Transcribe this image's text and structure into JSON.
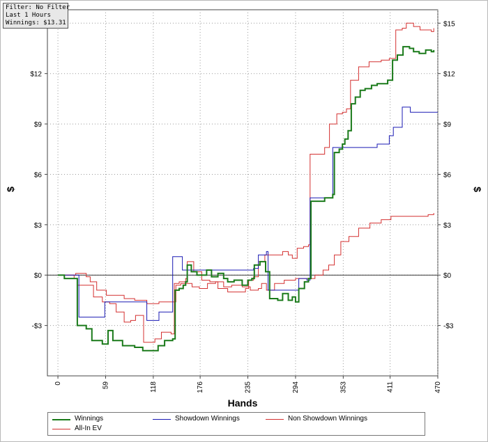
{
  "info": {
    "filter": "Filter: No Filter",
    "period": "Last  1 Hours",
    "winnings": "Winnings: $13.31"
  },
  "chart_data": {
    "type": "line",
    "xlabel": "Hands",
    "ylabel": "$",
    "ylabel_right": "$",
    "xlim": [
      -13,
      470
    ],
    "ylim": [
      -6,
      15.8
    ],
    "x_ticks": [
      0,
      59,
      118,
      176,
      235,
      294,
      353,
      411,
      470
    ],
    "y_ticks": [
      -3,
      0,
      3,
      6,
      9,
      12,
      15
    ],
    "y_tick_labels": [
      "-$3",
      "$0",
      "$3",
      "$6",
      "$9",
      "$12",
      "$15"
    ],
    "grid": true,
    "legend_position": "bottom",
    "series": [
      {
        "name": "Winnings",
        "color": "#1a7a1a",
        "points": [
          [
            0,
            0
          ],
          [
            8,
            -0.2
          ],
          [
            22,
            -0.2
          ],
          [
            24,
            -3
          ],
          [
            35,
            -3.2
          ],
          [
            42,
            -3.9
          ],
          [
            55,
            -4.1
          ],
          [
            62,
            -3.3
          ],
          [
            68,
            -3.9
          ],
          [
            80,
            -4.2
          ],
          [
            95,
            -4.3
          ],
          [
            105,
            -4.5
          ],
          [
            120,
            -4.5
          ],
          [
            124,
            -4.2
          ],
          [
            132,
            -3.9
          ],
          [
            142,
            -3.8
          ],
          [
            145,
            -0.9
          ],
          [
            150,
            -0.8
          ],
          [
            155,
            -0.6
          ],
          [
            158,
            -0.4
          ],
          [
            160,
            0.6
          ],
          [
            165,
            0.2
          ],
          [
            172,
            0
          ],
          [
            178,
            0
          ],
          [
            184,
            0.3
          ],
          [
            190,
            -0.1
          ],
          [
            198,
            0.1
          ],
          [
            205,
            -0.2
          ],
          [
            210,
            -0.4
          ],
          [
            218,
            -0.3
          ],
          [
            228,
            -0.6
          ],
          [
            235,
            -0.3
          ],
          [
            240,
            -0.2
          ],
          [
            243,
            0.6
          ],
          [
            250,
            0.8
          ],
          [
            257,
            0.2
          ],
          [
            262,
            -1.4
          ],
          [
            272,
            -1.5
          ],
          [
            278,
            -1.1
          ],
          [
            285,
            -1.5
          ],
          [
            290,
            -1.3
          ],
          [
            294,
            -1.6
          ],
          [
            298,
            -0.8
          ],
          [
            305,
            -0.4
          ],
          [
            310,
            -0.2
          ],
          [
            313,
            4.4
          ],
          [
            330,
            4.6
          ],
          [
            340,
            4.8
          ],
          [
            342,
            7.3
          ],
          [
            348,
            7.5
          ],
          [
            352,
            7.8
          ],
          [
            355,
            8.1
          ],
          [
            359,
            8.6
          ],
          [
            363,
            10.2
          ],
          [
            368,
            10.6
          ],
          [
            374,
            11
          ],
          [
            380,
            11.1
          ],
          [
            388,
            11.3
          ],
          [
            395,
            11.4
          ],
          [
            408,
            11.6
          ],
          [
            414,
            12.8
          ],
          [
            420,
            13.1
          ],
          [
            427,
            13.6
          ],
          [
            435,
            13.5
          ],
          [
            440,
            13.3
          ],
          [
            447,
            13.2
          ],
          [
            455,
            13.4
          ],
          [
            462,
            13.3
          ],
          [
            465,
            13.4
          ]
        ]
      },
      {
        "name": "Showdown Winnings",
        "color": "#1a1ab4",
        "points": [
          [
            0,
            0
          ],
          [
            24,
            0
          ],
          [
            26,
            -2.5
          ],
          [
            55,
            -2.5
          ],
          [
            58,
            -1.6
          ],
          [
            108,
            -1.6
          ],
          [
            110,
            -2.7
          ],
          [
            118,
            -2.7
          ],
          [
            125,
            -2.2
          ],
          [
            140,
            -2.2
          ],
          [
            142,
            1.1
          ],
          [
            152,
            1.1
          ],
          [
            154,
            0.3
          ],
          [
            232,
            0.3
          ],
          [
            242,
            0.4
          ],
          [
            248,
            1.2
          ],
          [
            258,
            1.4
          ],
          [
            260,
            -0.9
          ],
          [
            296,
            -0.9
          ],
          [
            298,
            -0.2
          ],
          [
            304,
            -0.2
          ],
          [
            308,
            -0.3
          ],
          [
            312,
            4.6
          ],
          [
            333,
            4.6
          ],
          [
            340,
            7.6
          ],
          [
            395,
            7.8
          ],
          [
            408,
            7.8
          ],
          [
            410,
            8.3
          ],
          [
            415,
            8.8
          ],
          [
            420,
            8.8
          ],
          [
            426,
            10
          ],
          [
            431,
            10
          ],
          [
            436,
            9.7
          ],
          [
            470,
            9.7
          ]
        ]
      },
      {
        "name": "Non Showdown Winnings",
        "color": "#d43030",
        "points": [
          [
            0,
            0
          ],
          [
            20,
            0
          ],
          [
            22,
            0.1
          ],
          [
            35,
            -0.1
          ],
          [
            40,
            -0.4
          ],
          [
            48,
            -0.9
          ],
          [
            60,
            -1.2
          ],
          [
            72,
            -1.2
          ],
          [
            82,
            -1.4
          ],
          [
            95,
            -1.5
          ],
          [
            110,
            -1.7
          ],
          [
            125,
            -1.6
          ],
          [
            140,
            -1.6
          ],
          [
            146,
            -0.6
          ],
          [
            152,
            -0.5
          ],
          [
            160,
            -0.5
          ],
          [
            166,
            -0.7
          ],
          [
            175,
            -0.8
          ],
          [
            185,
            -0.5
          ],
          [
            195,
            -0.4
          ],
          [
            205,
            -0.7
          ],
          [
            215,
            -0.6
          ],
          [
            228,
            -0.7
          ],
          [
            238,
            -0.9
          ],
          [
            248,
            -0.8
          ],
          [
            252,
            -0.5
          ],
          [
            258,
            -0.9
          ],
          [
            268,
            -0.5
          ],
          [
            280,
            -0.3
          ],
          [
            294,
            -0.2
          ],
          [
            310,
            -0.2
          ],
          [
            318,
            0
          ],
          [
            328,
            0.3
          ],
          [
            335,
            0.6
          ],
          [
            342,
            1.2
          ],
          [
            350,
            2
          ],
          [
            360,
            2.3
          ],
          [
            372,
            2.8
          ],
          [
            386,
            3.1
          ],
          [
            400,
            3.3
          ],
          [
            412,
            3.5
          ],
          [
            425,
            3.5
          ],
          [
            440,
            3.5
          ],
          [
            450,
            3.5
          ],
          [
            458,
            3.6
          ],
          [
            465,
            3.7
          ]
        ]
      },
      {
        "name": "All-In EV",
        "color": "#d43030",
        "points": [
          [
            0,
            0
          ],
          [
            20,
            -0.2
          ],
          [
            24,
            -0.6
          ],
          [
            42,
            -0.6
          ],
          [
            44,
            -1.3
          ],
          [
            55,
            -1.6
          ],
          [
            64,
            -1.7
          ],
          [
            72,
            -2.2
          ],
          [
            82,
            -2.8
          ],
          [
            90,
            -2.7
          ],
          [
            96,
            -2.4
          ],
          [
            106,
            -4
          ],
          [
            120,
            -3.8
          ],
          [
            128,
            -3.4
          ],
          [
            140,
            -3.5
          ],
          [
            144,
            -0.5
          ],
          [
            150,
            -0.4
          ],
          [
            158,
            -0.2
          ],
          [
            160,
            0.8
          ],
          [
            168,
            0.2
          ],
          [
            178,
            -0.3
          ],
          [
            188,
            -0.4
          ],
          [
            198,
            -0.8
          ],
          [
            210,
            -1
          ],
          [
            222,
            -1
          ],
          [
            232,
            -0.8
          ],
          [
            236,
            -0.3
          ],
          [
            242,
            -0.1
          ],
          [
            248,
            0.8
          ],
          [
            256,
            1.2
          ],
          [
            268,
            1.2
          ],
          [
            278,
            1.4
          ],
          [
            285,
            1.2
          ],
          [
            290,
            1
          ],
          [
            296,
            1.6
          ],
          [
            300,
            1.6
          ],
          [
            304,
            1.7
          ],
          [
            310,
            1.8
          ],
          [
            312,
            7.2
          ],
          [
            330,
            7.6
          ],
          [
            336,
            9
          ],
          [
            345,
            9.6
          ],
          [
            352,
            9.7
          ],
          [
            357,
            9.9
          ],
          [
            362,
            11.6
          ],
          [
            372,
            12.4
          ],
          [
            385,
            12.7
          ],
          [
            400,
            12.8
          ],
          [
            410,
            12.9
          ],
          [
            418,
            14.6
          ],
          [
            426,
            14.7
          ],
          [
            431,
            15
          ],
          [
            440,
            14.8
          ],
          [
            448,
            14.6
          ],
          [
            455,
            14.6
          ],
          [
            462,
            14.5
          ],
          [
            465,
            14.7
          ]
        ]
      }
    ],
    "legend": [
      {
        "name": "Winnings",
        "color": "#1a7a1a"
      },
      {
        "name": "Showdown Winnings",
        "color": "#1a1ab4"
      },
      {
        "name": "Non Showdown Winnings",
        "color": "#d43030"
      },
      {
        "name": "All-In EV",
        "color": "#d43030"
      }
    ]
  }
}
